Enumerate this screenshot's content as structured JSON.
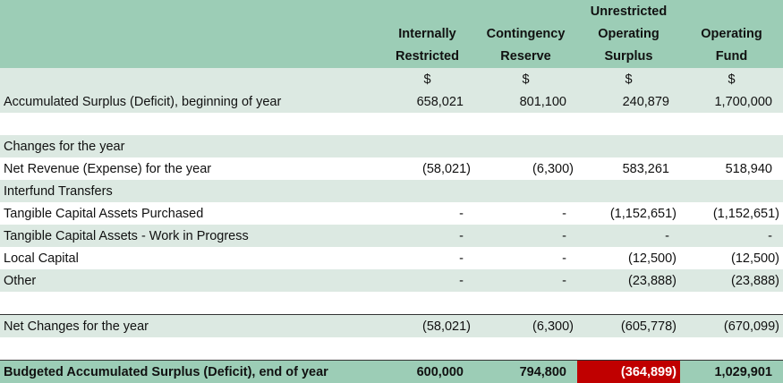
{
  "table": {
    "columns": [
      "Internally Restricted",
      "Contingency Reserve",
      "Unrestricted Operating Surplus",
      "Operating Fund"
    ],
    "currency_row": [
      "$",
      "$",
      "$",
      "$"
    ],
    "rows": [
      {
        "label": "Accumulated Surplus (Deficit), beginning of year",
        "cells": [
          "658,021",
          "801,100",
          "240,879",
          "1,700,000"
        ]
      },
      {
        "label": "Changes for the year"
      },
      {
        "label": "Net Revenue (Expense) for the year",
        "cells": [
          "(58,021)",
          "(6,300)",
          "583,261",
          "518,940"
        ]
      },
      {
        "label": "Interfund Transfers"
      },
      {
        "label": "Tangible Capital Assets Purchased",
        "cells": [
          "-",
          "-",
          "(1,152,651)",
          "(1,152,651)"
        ]
      },
      {
        "label": "Tangible Capital Assets - Work in Progress",
        "cells": [
          "-",
          "-",
          "-",
          "-"
        ]
      },
      {
        "label": "Local Capital",
        "cells": [
          "-",
          "-",
          "(12,500)",
          "(12,500)"
        ]
      },
      {
        "label": "Other",
        "cells": [
          "-",
          "-",
          "(23,888)",
          "(23,888)"
        ]
      },
      {
        "label": "Net Changes for the year",
        "cells": [
          "(58,021)",
          "(6,300)",
          "(605,778)",
          "(670,099)"
        ]
      },
      {
        "label": "Budgeted Accumulated Surplus (Deficit), end of year",
        "cells": [
          "600,000",
          "794,800",
          "(364,899)",
          "1,029,901"
        ]
      }
    ]
  }
}
